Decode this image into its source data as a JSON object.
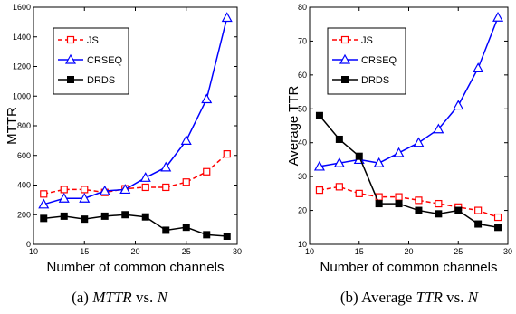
{
  "chart_data": [
    {
      "type": "line",
      "xlabel": "Number of common channels",
      "ylabel": "MTTR",
      "xlim": [
        10,
        30
      ],
      "ylim": [
        0,
        1600
      ],
      "xticks": [
        10,
        15,
        20,
        25,
        30
      ],
      "yticks": [
        0,
        200,
        400,
        600,
        800,
        1000,
        1200,
        1400,
        1600
      ],
      "legend_position": "top-left",
      "caption": {
        "prefix": "(a)",
        "y_var": "MTTR",
        "vs": "vs.",
        "x_var": "N"
      },
      "x": [
        11,
        13,
        15,
        17,
        19,
        21,
        23,
        25,
        27,
        29
      ],
      "series": [
        {
          "name": "JS",
          "color": "#ff0000",
          "marker": "square-open",
          "dash": "dashed",
          "values": [
            340,
            370,
            370,
            350,
            375,
            385,
            385,
            420,
            490,
            610
          ]
        },
        {
          "name": "CRSEQ",
          "color": "#0000ff",
          "marker": "triangle-open",
          "dash": "solid",
          "values": [
            270,
            310,
            310,
            360,
            370,
            450,
            520,
            700,
            980,
            1530
          ]
        },
        {
          "name": "DRDS",
          "color": "#000000",
          "marker": "square-filled",
          "dash": "solid",
          "values": [
            175,
            190,
            170,
            190,
            200,
            185,
            95,
            115,
            65,
            55
          ]
        }
      ]
    },
    {
      "type": "line",
      "xlabel": "Number of common channels",
      "ylabel": "Average TTR",
      "xlim": [
        10,
        30
      ],
      "ylim": [
        10,
        80
      ],
      "xticks": [
        10,
        15,
        20,
        25,
        30
      ],
      "yticks": [
        10,
        20,
        30,
        40,
        50,
        60,
        70,
        80
      ],
      "legend_position": "top-left",
      "caption": {
        "prefix": "(b)",
        "y_var_prefix": "Average",
        "y_var": "TTR",
        "vs": "vs.",
        "x_var": "N"
      },
      "x": [
        11,
        13,
        15,
        17,
        19,
        21,
        23,
        25,
        27,
        29
      ],
      "series": [
        {
          "name": "JS",
          "color": "#ff0000",
          "marker": "square-open",
          "dash": "dashed",
          "values": [
            26,
            27,
            25,
            24,
            24,
            23,
            22,
            21,
            20,
            18
          ]
        },
        {
          "name": "CRSEQ",
          "color": "#0000ff",
          "marker": "triangle-open",
          "dash": "solid",
          "values": [
            33,
            34,
            35,
            34,
            37,
            40,
            44,
            51,
            62,
            77
          ]
        },
        {
          "name": "DRDS",
          "color": "#000000",
          "marker": "square-filled",
          "dash": "solid",
          "values": [
            48,
            41,
            36,
            22,
            22,
            20,
            19,
            20,
            16,
            15
          ]
        }
      ]
    }
  ]
}
